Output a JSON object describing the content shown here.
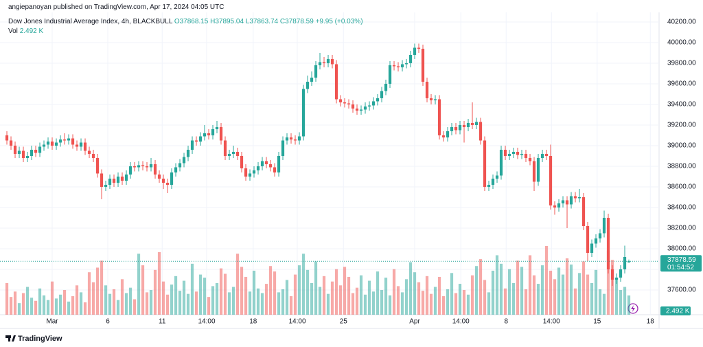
{
  "header": {
    "publisher": "angiepanoyan published on TradingView.com, Apr 17, 2024 04:05 UTC",
    "symbol": "Dow Jones Industrial Average Index, 4h, BLACKBULL",
    "ohlc": [
      "O37868.15",
      "H37895.04",
      "L37863.74",
      "C37878.59",
      "+9.95 (+0.03%)"
    ],
    "vol_label": "Vol",
    "vol_value": "2.492 K"
  },
  "footer": {
    "logo": "TradingView"
  },
  "chart_data": {
    "type": "candlestick",
    "up_color": "#26a69a",
    "down_color": "#ef5350",
    "grid": true,
    "xlim": [
      -1.67,
      158.33
    ],
    "ylim": [
      37360,
      40293
    ],
    "xticks": [
      {
        "value": 11,
        "label": "Mar"
      },
      {
        "value": 24.5,
        "label": "6"
      },
      {
        "value": 37.7,
        "label": "11"
      },
      {
        "value": 48.5,
        "label": "14:00"
      },
      {
        "value": 59.8,
        "label": "18"
      },
      {
        "value": 70.5,
        "label": "14:00"
      },
      {
        "value": 81.7,
        "label": "25"
      },
      {
        "value": 99,
        "label": "Apr"
      },
      {
        "value": 110.2,
        "label": "14:00"
      },
      {
        "value": 121.2,
        "label": "8"
      },
      {
        "value": 132.2,
        "label": "14:00"
      },
      {
        "value": 143.3,
        "label": "15"
      },
      {
        "value": 156.2,
        "label": "18"
      }
    ],
    "yticks": [
      {
        "value": 37600,
        "label": "37600.00"
      },
      {
        "value": 37800,
        "label": "37800.00"
      },
      {
        "value": 38000,
        "label": "38000.00"
      },
      {
        "value": 38200,
        "label": "38200.00"
      },
      {
        "value": 38400,
        "label": "38400.00"
      },
      {
        "value": 38600,
        "label": "38600.00"
      },
      {
        "value": 38800,
        "label": "38800.00"
      },
      {
        "value": 39000,
        "label": "39000.00"
      },
      {
        "value": 39200,
        "label": "39200.00"
      },
      {
        "value": 39400,
        "label": "39400.00"
      },
      {
        "value": 39600,
        "label": "39600.00"
      },
      {
        "value": 39800,
        "label": "39800.00"
      },
      {
        "value": 40000,
        "label": "40000.00"
      },
      {
        "value": 40200,
        "label": "40200.00"
      }
    ],
    "last_price": 37878.59,
    "countdown": "01:54:52",
    "last_volume_label": "2.492 K",
    "open": [
      39100,
      39050,
      39000,
      38920,
      38950,
      38880,
      38900,
      38960,
      38930,
      38990,
      39010,
      39040,
      39000,
      39030,
      39060,
      39050,
      39070,
      39010,
      38990,
      39030,
      38950,
      38920,
      38880,
      38730,
      38600,
      38620,
      38680,
      38640,
      38700,
      38660,
      38720,
      38800,
      38790,
      38810,
      38800,
      38790,
      38820,
      38720,
      38680,
      38640,
      38620,
      38740,
      38790,
      38830,
      38890,
      38960,
      39050,
      39040,
      39090,
      39120,
      39100,
      39160,
      39180,
      39050,
      38900,
      38920,
      38940,
      38900,
      38780,
      38700,
      38730,
      38760,
      38800,
      38850,
      38820,
      38790,
      38740,
      38900,
      39050,
      39080,
      39060,
      39050,
      39090,
      39550,
      39620,
      39660,
      39780,
      39810,
      39800,
      39840,
      39790,
      39450,
      39420,
      39410,
      39400,
      39360,
      39340,
      39350,
      39380,
      39390,
      39430,
      39460,
      39530,
      39600,
      39780,
      39770,
      39760,
      39790,
      39800,
      39880,
      39950,
      39940,
      39620,
      39460,
      39440,
      39450,
      39100,
      39080,
      39140,
      39180,
      39150,
      39200,
      39180,
      39220,
      39200,
      39230,
      39050,
      38600,
      38620,
      38680,
      38710,
      38960,
      38900,
      38920,
      38940,
      38910,
      38920,
      38880,
      38850,
      38650,
      38880,
      38920,
      38900,
      38420,
      38400,
      38440,
      38470,
      38430,
      38510,
      38490,
      38500,
      38220,
      37960,
      38050,
      38100,
      38150,
      38300,
      37800,
      37700,
      37720,
      37800,
      37868.15
    ],
    "high": [
      39140,
      39090,
      39040,
      38990,
      38990,
      38940,
      39000,
      39000,
      39030,
      39050,
      39080,
      39080,
      39070,
      39100,
      39120,
      39110,
      39110,
      39050,
      39070,
      39070,
      38990,
      38960,
      38920,
      38770,
      38660,
      38720,
      38720,
      38740,
      38740,
      38760,
      38840,
      38840,
      38850,
      38850,
      38840,
      38880,
      38860,
      38760,
      38720,
      38680,
      38780,
      38830,
      38870,
      38930,
      39000,
      39090,
      39090,
      39130,
      39200,
      39160,
      39200,
      39240,
      39220,
      39090,
      38960,
      39000,
      38980,
      38940,
      38820,
      38770,
      38800,
      38840,
      38890,
      38890,
      38860,
      38830,
      38940,
      39090,
      39120,
      39120,
      39100,
      39130,
      39590,
      39680,
      39720,
      39820,
      39900,
      39860,
      39880,
      39880,
      39830,
      39490,
      39460,
      39450,
      39440,
      39400,
      39390,
      39420,
      39430,
      39470,
      39500,
      39570,
      39640,
      39820,
      39820,
      39810,
      39830,
      39840,
      39920,
      39990,
      39990,
      39980,
      39660,
      39500,
      39490,
      39490,
      39140,
      39180,
      39220,
      39220,
      39240,
      39240,
      39260,
      39420,
      39270,
      39270,
      39090,
      38660,
      38720,
      38750,
      39000,
      39000,
      38960,
      38980,
      38980,
      38960,
      38960,
      38920,
      38890,
      38920,
      38960,
      38960,
      39010,
      38460,
      38480,
      38510,
      38510,
      38550,
      38550,
      38580,
      38540,
      38260,
      38090,
      38140,
      38190,
      38370,
      38340,
      37840,
      37760,
      37840,
      38030,
      37895.04
    ],
    "low": [
      39010,
      38960,
      38880,
      38880,
      38840,
      38840,
      38860,
      38890,
      38890,
      38950,
      38970,
      38960,
      38960,
      38990,
      39010,
      39010,
      38970,
      38950,
      38950,
      38910,
      38880,
      38840,
      38690,
      38480,
      38560,
      38580,
      38600,
      38600,
      38620,
      38620,
      38680,
      38750,
      38750,
      38760,
      38750,
      38750,
      38680,
      38640,
      38580,
      38540,
      38580,
      38700,
      38750,
      38790,
      38850,
      38920,
      39000,
      39000,
      39050,
      39060,
      39060,
      39120,
      39010,
      38860,
      38860,
      38880,
      38860,
      38740,
      38660,
      38660,
      38690,
      38720,
      38760,
      38780,
      38750,
      38700,
      38700,
      38860,
      39010,
      39020,
      39010,
      39010,
      39050,
      39510,
      39580,
      39620,
      39740,
      39760,
      39760,
      39750,
      39410,
      39380,
      39370,
      39360,
      39320,
      39300,
      39300,
      39310,
      39340,
      39350,
      39390,
      39420,
      39490,
      39560,
      39730,
      39720,
      39720,
      39750,
      39760,
      39840,
      39900,
      39580,
      39420,
      39400,
      39400,
      39060,
      39040,
      39040,
      39100,
      39110,
      39110,
      39030,
      39140,
      39160,
      39160,
      39010,
      38560,
      38560,
      38580,
      38640,
      38670,
      38860,
      38860,
      38880,
      38870,
      38870,
      38840,
      38810,
      38560,
      38610,
      38840,
      38860,
      38380,
      38330,
      38360,
      38400,
      38200,
      38390,
      38450,
      38450,
      38180,
      37880,
      37920,
      38010,
      38060,
      38110,
      37760,
      37640,
      37660,
      37680,
      37760,
      37863.74
    ],
    "close": [
      39050,
      39000,
      38920,
      38950,
      38880,
      38900,
      38960,
      38930,
      38990,
      39010,
      39040,
      39000,
      39030,
      39060,
      39050,
      39070,
      39010,
      38990,
      39030,
      38950,
      38920,
      38880,
      38730,
      38600,
      38620,
      38680,
      38640,
      38700,
      38660,
      38720,
      38800,
      38790,
      38810,
      38800,
      38790,
      38820,
      38720,
      38680,
      38640,
      38620,
      38740,
      38790,
      38830,
      38890,
      38960,
      39050,
      39040,
      39090,
      39120,
      39100,
      39160,
      39180,
      39050,
      38900,
      38920,
      38940,
      38900,
      38780,
      38700,
      38730,
      38760,
      38800,
      38850,
      38820,
      38790,
      38740,
      38900,
      39050,
      39080,
      39060,
      39050,
      39090,
      39550,
      39620,
      39660,
      39780,
      39810,
      39800,
      39840,
      39790,
      39450,
      39420,
      39410,
      39400,
      39360,
      39340,
      39350,
      39380,
      39390,
      39430,
      39460,
      39530,
      39600,
      39780,
      39770,
      39760,
      39790,
      39800,
      39880,
      39950,
      39940,
      39620,
      39460,
      39440,
      39450,
      39100,
      39080,
      39140,
      39180,
      39150,
      39200,
      39180,
      39220,
      39200,
      39230,
      39050,
      38600,
      38620,
      38680,
      38710,
      38960,
      38900,
      38920,
      38940,
      38910,
      38920,
      38880,
      38850,
      38650,
      38880,
      38920,
      38900,
      38420,
      38400,
      38440,
      38470,
      38430,
      38510,
      38490,
      38500,
      38220,
      37960,
      38050,
      38100,
      38150,
      38300,
      37800,
      37700,
      37720,
      37800,
      37920,
      37878.59
    ],
    "volume": [
      4.1,
      2.3,
      3.0,
      1.5,
      2.8,
      3.6,
      2.2,
      1.8,
      3.4,
      2.5,
      1.9,
      4.3,
      2.1,
      2.6,
      3.2,
      1.7,
      2.4,
      3.8,
      2.9,
      1.6,
      5.5,
      4.2,
      6.1,
      7.0,
      3.8,
      2.7,
      3.3,
      1.9,
      4.6,
      2.8,
      3.5,
      2.0,
      7.9,
      6.4,
      2.9,
      3.2,
      5.8,
      8.1,
      4.3,
      2.6,
      3.9,
      5.0,
      3.1,
      4.4,
      2.7,
      6.6,
      3.0,
      5.2,
      4.8,
      2.3,
      3.7,
      4.1,
      6.0,
      5.3,
      2.9,
      3.6,
      7.9,
      6.2,
      4.9,
      3.0,
      5.7,
      3.4,
      2.8,
      4.0,
      6.3,
      5.6,
      2.9,
      3.3,
      4.5,
      2.4,
      5.2,
      6.4,
      7.9,
      5.8,
      4.1,
      6.9,
      3.6,
      5.0,
      2.7,
      4.3,
      5.9,
      3.8,
      6.2,
      4.9,
      2.8,
      3.5,
      5.1,
      2.6,
      4.4,
      3.0,
      5.6,
      3.2,
      4.8,
      2.5,
      5.9,
      3.7,
      2.9,
      4.6,
      6.8,
      5.5,
      4.2,
      3.1,
      5.0,
      2.7,
      3.6,
      4.9,
      2.4,
      3.3,
      5.4,
      2.8,
      4.0,
      3.2,
      2.6,
      5.1,
      6.3,
      7.2,
      4.5,
      2.9,
      5.7,
      7.7,
      6.6,
      3.4,
      5.9,
      4.1,
      7.0,
      6.2,
      3.3,
      7.7,
      5.1,
      4.0,
      6.4,
      8.9,
      5.7,
      4.6,
      6.1,
      5.2,
      7.3,
      6.5,
      3.4,
      5.4,
      6.9,
      5.2,
      4.1,
      5.8,
      3.3,
      2.7,
      8.3,
      7.1,
      4.8,
      3.2,
      3.6,
      2.492
    ]
  }
}
